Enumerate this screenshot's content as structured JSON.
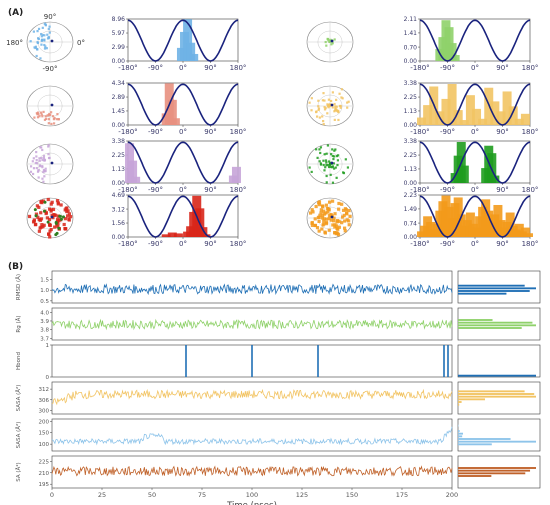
{
  "panel_labels": {
    "a": "(A)",
    "b": "(B)"
  },
  "colors": {
    "curve": "#1a237e",
    "axis": "#3c3c3c",
    "tick_text": "#3a3a6a",
    "blue": "#6fb3e6",
    "green": "#8fd16a",
    "pink": "#e8907f",
    "yellow": "#f2c464",
    "purple": "#c7a4d8",
    "darkgreen": "#1e9c1e",
    "red": "#d8261a",
    "orange": "#f39a1b"
  },
  "polar_labels": {
    "top": "90°",
    "left": "180°",
    "bottom": "-90°",
    "right": "0°"
  },
  "hist_x_ticks": [
    "-180°",
    "-90°",
    "0°",
    "90°",
    "180°"
  ],
  "chart_data": [
    {
      "type": "bar",
      "title": "",
      "xlabel": "",
      "ylabel": "",
      "xlim": [
        -180,
        180
      ],
      "panels": [
        {
          "color": "blue",
          "yticks": [
            "0.00",
            "2.99",
            "5.97",
            "8.96"
          ],
          "ylim": [
            0,
            8.96
          ],
          "curve_period": 180,
          "curve_phase": 0,
          "x": [
            -5,
            5,
            15,
            25,
            35
          ],
          "values": [
            2.8,
            6.2,
            8.9,
            3.9,
            1.5
          ],
          "polar_pattern": "top_left"
        },
        {
          "color": "green",
          "yticks": [
            "0.00",
            "0.70",
            "1.41",
            "2.11"
          ],
          "ylim": [
            0,
            2.11
          ],
          "curve_period": 180,
          "curve_phase": 0,
          "x": [
            -115,
            -105,
            -95,
            -85,
            -75,
            -65
          ],
          "values": [
            0.6,
            1.2,
            2.05,
            1.7,
            0.9,
            0.3
          ],
          "polar_pattern": "center_small"
        },
        {
          "color": "pink",
          "yticks": [
            "0.00",
            "1.45",
            "2.89",
            "4.34"
          ],
          "ylim": [
            0,
            4.34
          ],
          "curve_period": 180,
          "curve_phase": 0,
          "x": [
            -55,
            -45,
            -35,
            -25
          ],
          "values": [
            1.2,
            4.3,
            2.6,
            0.7
          ],
          "polar_pattern": "bottom_sector"
        },
        {
          "color": "yellow",
          "yticks": [
            "0.00",
            "1.13",
            "2.25",
            "3.38"
          ],
          "ylim": [
            0,
            3.38
          ],
          "curve_period": 180,
          "curve_phase": 0,
          "x": [
            -175,
            -155,
            -135,
            -115,
            -95,
            -75,
            -55,
            -35,
            -15,
            5,
            25,
            45,
            65,
            85,
            105,
            125,
            145,
            165
          ],
          "values": [
            0.6,
            1.6,
            3.1,
            1.1,
            2.1,
            3.3,
            1.2,
            0.4,
            2.4,
            1.3,
            0.5,
            3.0,
            1.9,
            1.1,
            2.7,
            1.5,
            0.5,
            0.9
          ],
          "polar_pattern": "speckled"
        },
        {
          "color": "purple",
          "yticks": [
            "0.00",
            "1.13",
            "2.25",
            "3.38"
          ],
          "ylim": [
            0,
            3.38
          ],
          "curve_period": 180,
          "curve_phase": 0,
          "x": [
            -175,
            -165,
            -155,
            165,
            175
          ],
          "values": [
            3.2,
            1.8,
            0.5,
            0.6,
            1.3
          ],
          "polar_pattern": "left_lobe"
        },
        {
          "color": "darkgreen",
          "yticks": [
            "0.00",
            "1.13",
            "2.25",
            "3.38"
          ],
          "ylim": [
            0,
            3.38
          ],
          "curve_period": 180,
          "curve_phase": 0,
          "x": [
            -65,
            -55,
            -45,
            -35,
            35,
            45,
            55,
            65
          ],
          "values": [
            0.8,
            2.2,
            3.3,
            1.4,
            1.2,
            3.0,
            2.4,
            0.6
          ],
          "polar_pattern": "scattered_dark"
        },
        {
          "color": "red",
          "yticks": [
            "0.00",
            "1.56",
            "3.12",
            "4.69"
          ],
          "ylim": [
            0,
            4.69
          ],
          "curve_period": 180,
          "curve_phase": 0,
          "x": [
            -55,
            -35,
            -15,
            15,
            25,
            35,
            45,
            55,
            65,
            75
          ],
          "values": [
            0.3,
            0.5,
            0.4,
            0.6,
            1.2,
            2.8,
            4.6,
            3.2,
            1.1,
            0.3
          ],
          "polar_pattern": "dense_red"
        },
        {
          "color": "orange",
          "yticks": [
            "0.00",
            "0.74",
            "1.49",
            "2.23"
          ],
          "ylim": [
            0,
            2.23
          ],
          "curve_period": 180,
          "curve_phase": 0,
          "x": [
            -175,
            -165,
            -155,
            -145,
            -135,
            -125,
            -115,
            -105,
            -95,
            -85,
            -75,
            -65,
            -55,
            -45,
            -35,
            -25,
            -15,
            -5,
            5,
            15,
            25,
            35,
            45,
            55,
            65,
            75,
            85,
            95,
            105,
            115,
            125,
            135,
            145,
            155,
            165,
            175
          ],
          "values": [
            0.3,
            0.6,
            1.1,
            0.8,
            0.4,
            0.7,
            1.4,
            1.9,
            2.2,
            1.6,
            1.0,
            1.8,
            2.1,
            1.2,
            0.6,
            0.9,
            1.3,
            0.7,
            0.5,
            1.1,
            1.6,
            2.0,
            1.4,
            0.8,
            1.2,
            1.7,
            0.9,
            0.5,
            0.8,
            1.3,
            0.6,
            0.4,
            0.7,
            0.3,
            0.5,
            0.2
          ],
          "polar_pattern": "orange_fill"
        }
      ]
    },
    {
      "type": "line",
      "title": "",
      "xlabel": "Time (nsec)",
      "x_ticks": [
        "0",
        "25",
        "50",
        "75",
        "100",
        "125",
        "150",
        "175",
        "200"
      ],
      "xlim": [
        0,
        200
      ],
      "series": [
        {
          "ylabel": "RMSD (Å)",
          "color": "#1f6fb5",
          "yticks": [
            "0.5",
            "1.0",
            "1.5"
          ],
          "ylim": [
            0.4,
            1.9
          ],
          "mean": 1.05,
          "noise": 0.22,
          "trend": 0.0,
          "kind": "noise"
        },
        {
          "ylabel": "Rg (Å)",
          "color": "#8fd16a",
          "yticks": [
            "3.7",
            "3.8",
            "3.9",
            "4.0"
          ],
          "ylim": [
            3.68,
            4.05
          ],
          "mean": 3.86,
          "noise": 0.05,
          "trend": 0.0,
          "kind": "noise"
        },
        {
          "ylabel": "Hbond",
          "color": "#1f6fb5",
          "yticks": [
            "0",
            "1"
          ],
          "ylim": [
            0,
            1
          ],
          "spikes": [
            67,
            100,
            133,
            196,
            198
          ],
          "kind": "spikes"
        },
        {
          "ylabel": "SASA (Å²)",
          "color": "#f2c464",
          "yticks": [
            "300",
            "306",
            "312"
          ],
          "ylim": [
            298,
            316
          ],
          "mean": 309,
          "noise": 2.4,
          "trend": 0.0,
          "kind": "noise_dip"
        },
        {
          "ylabel": "SASA (Å²)",
          "color": "#8ec4ea",
          "yticks": [
            "100",
            "150",
            "200"
          ],
          "ylim": [
            70,
            210
          ],
          "mean": 112,
          "noise": 12,
          "trend": 0.0,
          "kind": "noise_bump"
        },
        {
          "ylabel": "SA (Å²)",
          "color": "#c0622a",
          "yticks": [
            "195",
            "210",
            "225"
          ],
          "ylim": [
            190,
            232
          ],
          "mean": 212,
          "noise": 6,
          "trend": 0.0,
          "kind": "noise"
        }
      ]
    }
  ]
}
